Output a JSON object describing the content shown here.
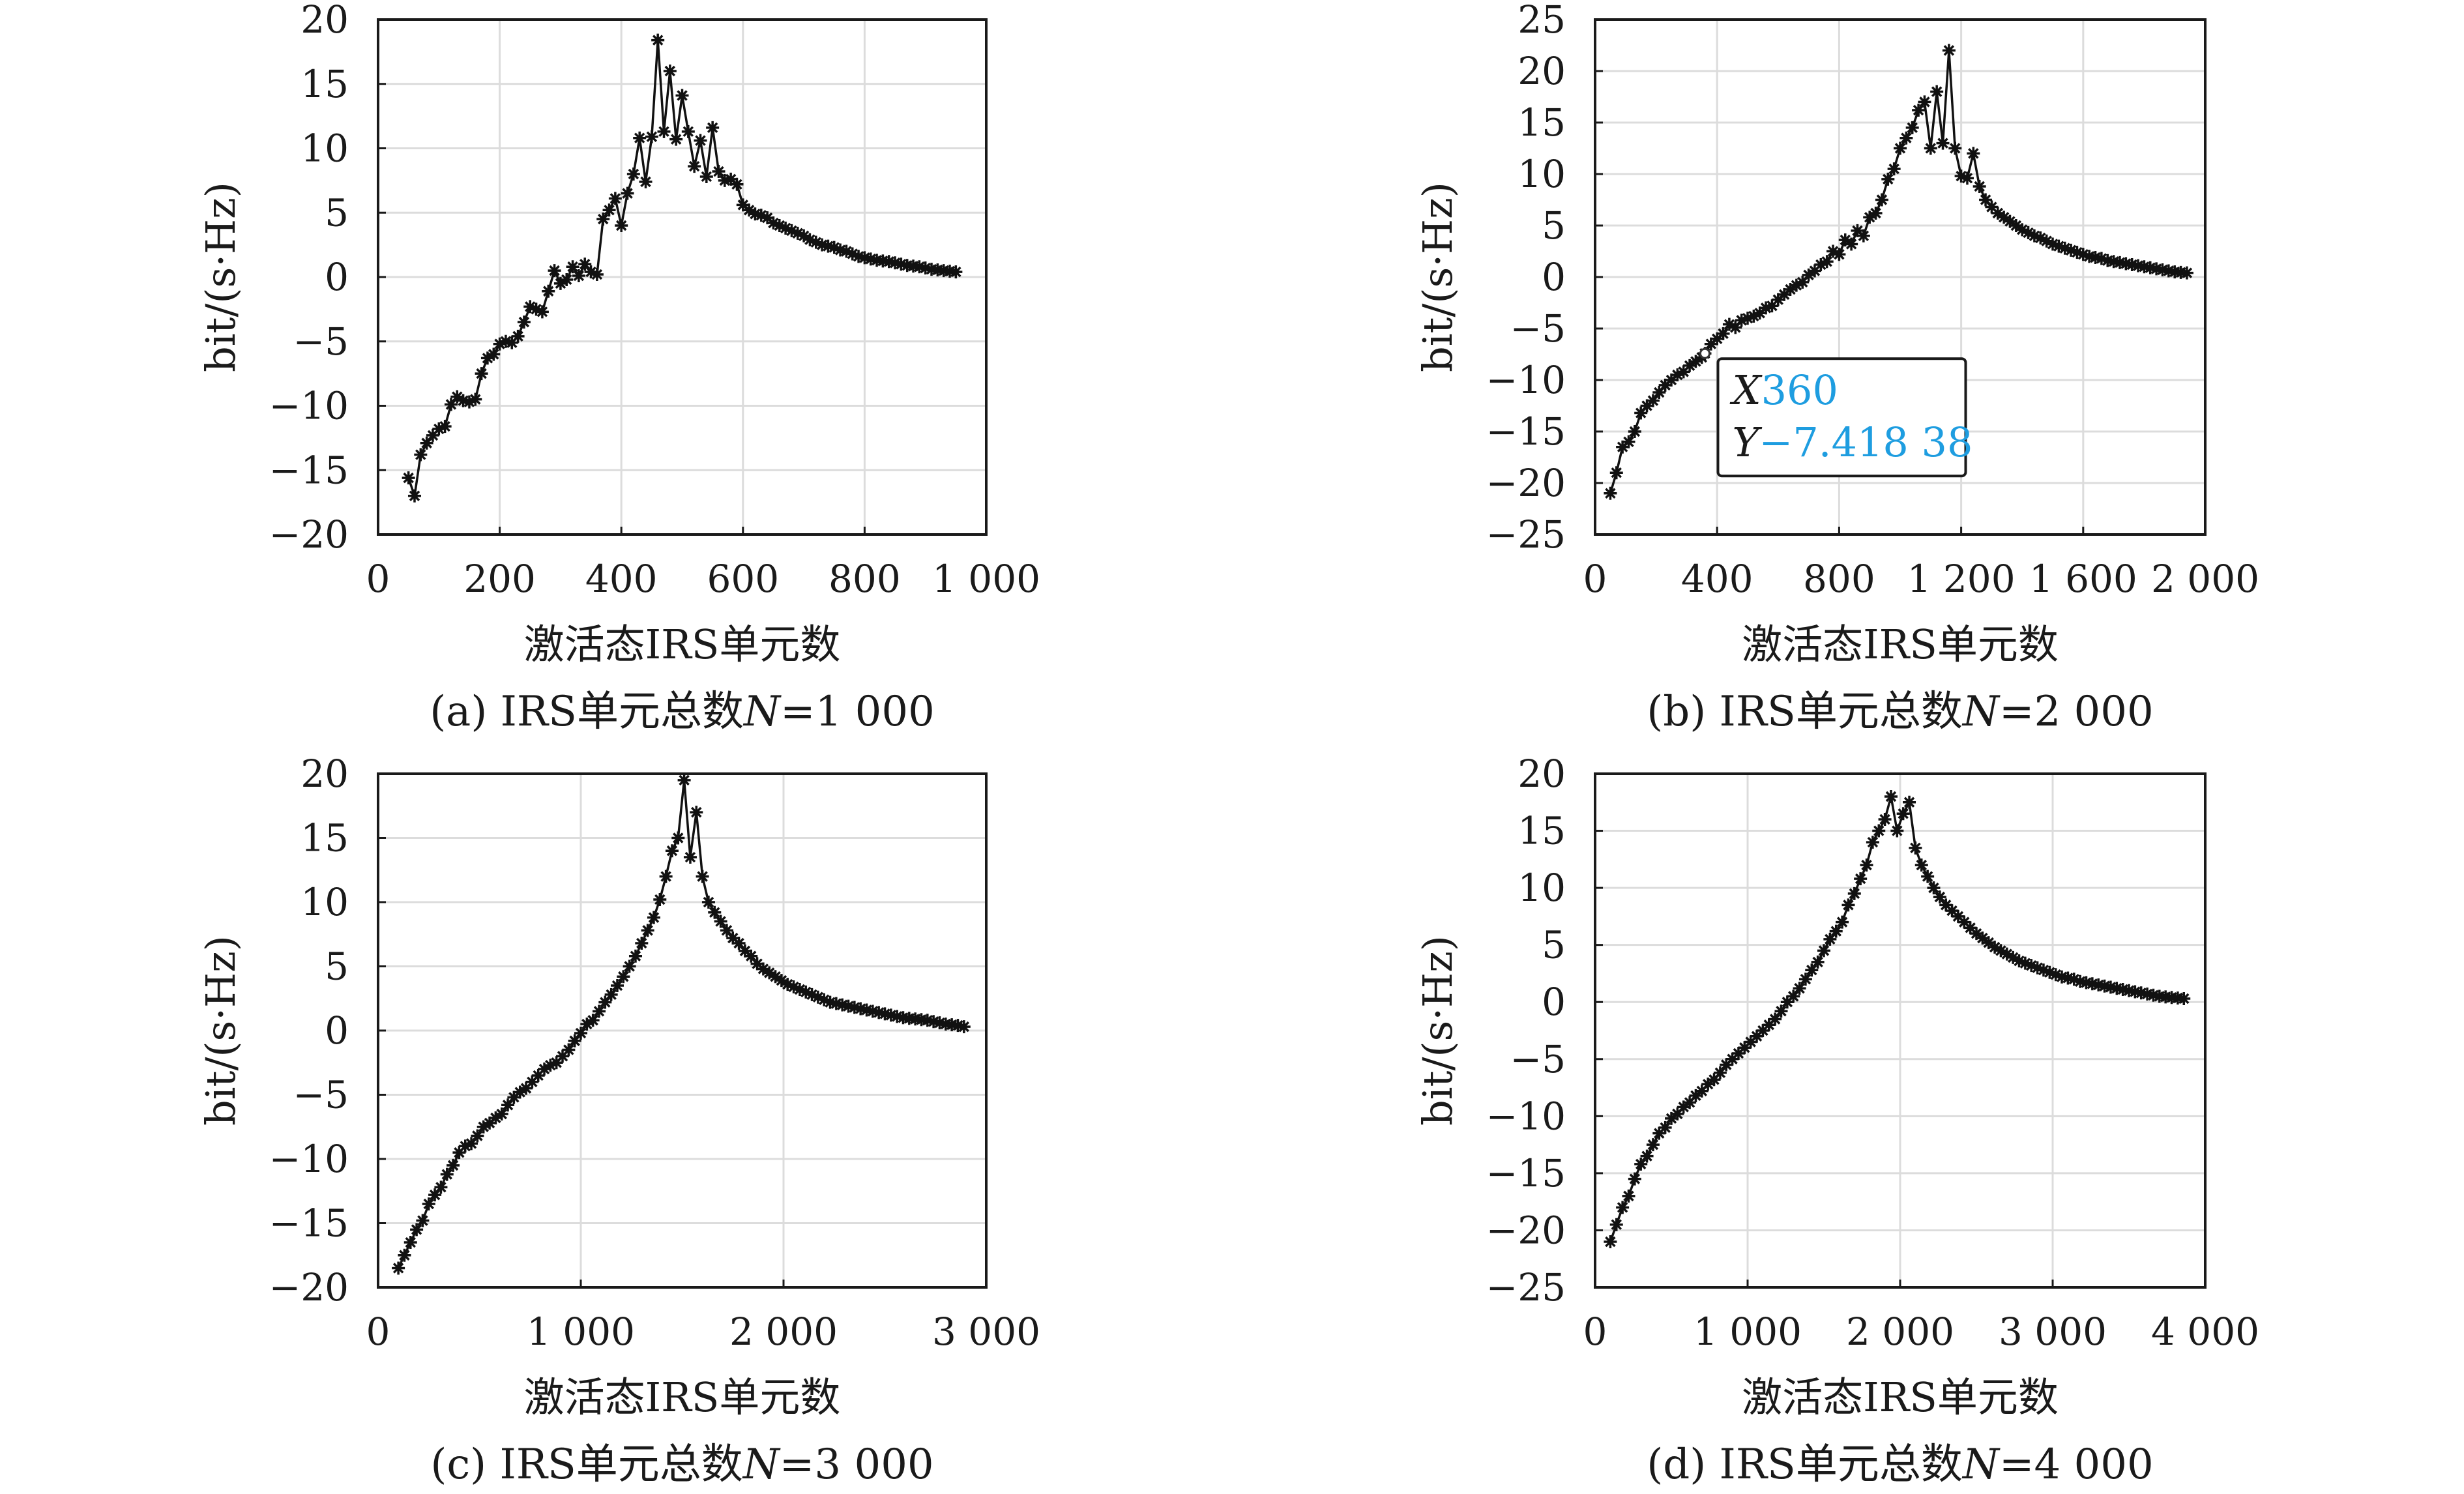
{
  "chart_data": [
    {
      "id": "a",
      "type": "line",
      "marker": "asterisk",
      "xlabel": "激活态IRS单元数",
      "ylabel": "bit/(s·Hz)",
      "caption": "(a) IRS单元总数N=1 000",
      "caption_parts": [
        "(a) IRS单元总数",
        "N",
        "=1 000"
      ],
      "xlim": [
        0,
        1000
      ],
      "ylim": [
        -20,
        20
      ],
      "xticks": [
        0,
        200,
        400,
        600,
        800,
        1000
      ],
      "xtick_labels": [
        "0",
        "200",
        "400",
        "600",
        "800",
        "1 000"
      ],
      "yticks": [
        20,
        15,
        10,
        5,
        0,
        -5,
        -10,
        -15,
        -20
      ],
      "ytick_labels": [
        "20",
        "15",
        "10",
        "5",
        "0",
        "−5",
        "−10",
        "−15",
        "−20"
      ],
      "grid": true,
      "x": [
        50,
        60,
        70,
        80,
        90,
        100,
        110,
        120,
        130,
        140,
        150,
        160,
        170,
        180,
        190,
        200,
        210,
        220,
        230,
        240,
        250,
        260,
        270,
        280,
        290,
        300,
        310,
        320,
        330,
        340,
        350,
        360,
        370,
        380,
        390,
        400,
        410,
        420,
        430,
        440,
        450,
        460,
        470,
        480,
        490,
        500,
        510,
        520,
        530,
        540,
        550,
        560,
        570,
        580,
        590,
        600,
        610,
        620,
        630,
        640,
        650,
        660,
        670,
        680,
        690,
        700,
        710,
        720,
        730,
        740,
        750,
        760,
        770,
        780,
        790,
        800,
        810,
        820,
        830,
        840,
        850,
        860,
        870,
        880,
        890,
        900,
        910,
        920,
        930,
        940,
        950
      ],
      "y": [
        -15.6,
        -17.0,
        -13.8,
        -12.9,
        -12.3,
        -11.8,
        -11.6,
        -9.9,
        -9.3,
        -9.6,
        -9.7,
        -9.5,
        -7.5,
        -6.3,
        -6.0,
        -5.2,
        -5.0,
        -5.1,
        -4.6,
        -3.5,
        -2.3,
        -2.5,
        -2.7,
        -1.1,
        0.5,
        -0.5,
        -0.2,
        0.8,
        0.1,
        1.0,
        0.4,
        0.2,
        4.5,
        5.2,
        6.1,
        4.0,
        6.5,
        8.0,
        10.8,
        7.4,
        10.9,
        18.4,
        11.3,
        16.0,
        10.7,
        14.1,
        11.3,
        8.6,
        10.6,
        7.8,
        11.6,
        8.2,
        7.5,
        7.6,
        7.2,
        5.6,
        5.2,
        4.9,
        4.8,
        4.6,
        4.2,
        4.0,
        3.8,
        3.6,
        3.4,
        3.2,
        2.9,
        2.7,
        2.5,
        2.4,
        2.3,
        2.1,
        2.0,
        1.8,
        1.6,
        1.5,
        1.4,
        1.3,
        1.25,
        1.2,
        1.1,
        1.0,
        0.9,
        0.85,
        0.8,
        0.7,
        0.6,
        0.55,
        0.5,
        0.45,
        0.4
      ]
    },
    {
      "id": "b",
      "type": "line",
      "marker": "asterisk",
      "xlabel": "激活态IRS单元数",
      "ylabel": "bit/(s·Hz)",
      "caption": "(b) IRS单元总数N=2 000",
      "caption_parts": [
        "(b) IRS单元总数",
        "N",
        "=2 000"
      ],
      "xlim": [
        0,
        2000
      ],
      "ylim": [
        -25,
        25
      ],
      "xticks": [
        0,
        400,
        800,
        1200,
        1600,
        2000
      ],
      "xtick_labels": [
        "0",
        "400",
        "800",
        "1 200",
        "1 600",
        "2 000"
      ],
      "yticks": [
        25,
        20,
        15,
        10,
        5,
        0,
        -5,
        -10,
        -15,
        -20,
        -25
      ],
      "ytick_labels": [
        "25",
        "20",
        "15",
        "10",
        "5",
        "0",
        "−5",
        "−10",
        "−15",
        "−20",
        "−25"
      ],
      "grid": true,
      "datatip": {
        "x_key": "X",
        "x_value": "360",
        "y_key": "Y",
        "y_value": "−7.418 38",
        "x": 360,
        "y": -7.41838
      },
      "x": [
        50,
        70,
        90,
        110,
        130,
        150,
        170,
        190,
        210,
        230,
        250,
        270,
        290,
        310,
        330,
        350,
        360,
        380,
        400,
        420,
        440,
        460,
        480,
        500,
        520,
        540,
        560,
        580,
        600,
        620,
        640,
        660,
        680,
        700,
        720,
        740,
        760,
        780,
        800,
        820,
        840,
        860,
        880,
        900,
        920,
        940,
        960,
        980,
        1000,
        1020,
        1040,
        1060,
        1080,
        1100,
        1120,
        1140,
        1160,
        1180,
        1200,
        1220,
        1240,
        1260,
        1280,
        1300,
        1320,
        1340,
        1360,
        1380,
        1400,
        1420,
        1440,
        1460,
        1480,
        1500,
        1520,
        1540,
        1560,
        1580,
        1600,
        1620,
        1640,
        1660,
        1680,
        1700,
        1720,
        1740,
        1760,
        1780,
        1800,
        1820,
        1840,
        1860,
        1880,
        1900,
        1920,
        1940
      ],
      "y": [
        -21.0,
        -19.0,
        -16.5,
        -16.0,
        -15.0,
        -13.2,
        -12.5,
        -12.0,
        -11.2,
        -10.5,
        -10.0,
        -9.5,
        -9.2,
        -8.6,
        -8.2,
        -7.8,
        -7.418,
        -6.5,
        -6.0,
        -5.5,
        -4.6,
        -4.9,
        -4.2,
        -4.0,
        -3.8,
        -3.5,
        -3.0,
        -2.8,
        -2.2,
        -1.7,
        -1.2,
        -0.8,
        -0.5,
        0.2,
        0.6,
        1.2,
        1.5,
        2.5,
        2.2,
        3.6,
        3.2,
        4.5,
        4.0,
        5.8,
        6.2,
        7.5,
        9.5,
        10.5,
        12.5,
        13.5,
        14.5,
        16.2,
        17.0,
        12.5,
        18.0,
        13.0,
        22.0,
        12.5,
        9.8,
        9.6,
        12.0,
        8.8,
        7.5,
        6.8,
        6.2,
        5.8,
        5.4,
        5.0,
        4.6,
        4.3,
        4.0,
        3.8,
        3.5,
        3.2,
        3.0,
        2.8,
        2.6,
        2.4,
        2.2,
        2.0,
        1.9,
        1.8,
        1.6,
        1.5,
        1.4,
        1.3,
        1.2,
        1.1,
        1.0,
        0.9,
        0.8,
        0.7,
        0.6,
        0.5,
        0.45,
        0.4
      ]
    },
    {
      "id": "c",
      "type": "line",
      "marker": "asterisk",
      "xlabel": "激活态IRS单元数",
      "ylabel": "bit/(s·Hz)",
      "caption": "(c) IRS单元总数N=3 000",
      "caption_parts": [
        "(c) IRS单元总数",
        "N",
        "=3 000"
      ],
      "xlim": [
        0,
        3000
      ],
      "ylim": [
        -20,
        20
      ],
      "xticks": [
        0,
        1000,
        2000,
        3000
      ],
      "xtick_labels": [
        "0",
        "1 000",
        "2 000",
        "3 000"
      ],
      "yticks": [
        20,
        15,
        10,
        5,
        0,
        -5,
        -10,
        -15,
        -20
      ],
      "ytick_labels": [
        "20",
        "15",
        "10",
        "5",
        "0",
        "−5",
        "−10",
        "−15",
        "−20"
      ],
      "grid": true,
      "x": [
        100,
        130,
        160,
        190,
        220,
        250,
        280,
        310,
        340,
        370,
        400,
        430,
        460,
        490,
        520,
        550,
        580,
        610,
        640,
        670,
        700,
        730,
        760,
        790,
        820,
        850,
        880,
        910,
        940,
        970,
        1000,
        1030,
        1060,
        1090,
        1120,
        1150,
        1180,
        1210,
        1240,
        1270,
        1300,
        1330,
        1360,
        1390,
        1420,
        1450,
        1480,
        1510,
        1540,
        1570,
        1600,
        1630,
        1660,
        1690,
        1720,
        1750,
        1780,
        1810,
        1840,
        1870,
        1900,
        1930,
        1960,
        1990,
        2020,
        2050,
        2080,
        2110,
        2140,
        2170,
        2200,
        2230,
        2260,
        2290,
        2320,
        2350,
        2380,
        2410,
        2440,
        2470,
        2500,
        2530,
        2560,
        2590,
        2620,
        2650,
        2680,
        2710,
        2740,
        2770,
        2800,
        2830,
        2860,
        2890
      ],
      "y": [
        -18.5,
        -17.5,
        -16.5,
        -15.5,
        -14.8,
        -13.5,
        -12.8,
        -12.2,
        -11.2,
        -10.5,
        -9.5,
        -9.0,
        -8.8,
        -8.2,
        -7.5,
        -7.2,
        -6.8,
        -6.5,
        -5.8,
        -5.2,
        -4.8,
        -4.5,
        -4.0,
        -3.5,
        -3.0,
        -2.7,
        -2.5,
        -2.0,
        -1.5,
        -0.8,
        -0.2,
        0.5,
        0.8,
        1.5,
        2.2,
        2.8,
        3.5,
        4.2,
        5.0,
        5.8,
        6.8,
        7.8,
        8.8,
        10.2,
        12.0,
        14.0,
        15.0,
        19.5,
        13.5,
        17.0,
        12.0,
        10.0,
        9.2,
        8.5,
        7.8,
        7.2,
        6.8,
        6.2,
        5.8,
        5.2,
        4.8,
        4.5,
        4.2,
        3.9,
        3.6,
        3.4,
        3.2,
        3.0,
        2.8,
        2.6,
        2.4,
        2.2,
        2.1,
        2.0,
        1.9,
        1.8,
        1.7,
        1.6,
        1.5,
        1.4,
        1.3,
        1.2,
        1.1,
        1.0,
        0.95,
        0.9,
        0.85,
        0.8,
        0.7,
        0.6,
        0.5,
        0.45,
        0.4,
        0.3
      ]
    },
    {
      "id": "d",
      "type": "line",
      "marker": "asterisk",
      "xlabel": "激活态IRS单元数",
      "ylabel": "bit/(s·Hz)",
      "caption": "(d) IRS单元总数N=4 000",
      "caption_parts": [
        "(d) IRS单元总数",
        "N",
        "=4 000"
      ],
      "xlim": [
        0,
        4000
      ],
      "ylim": [
        -25,
        20
      ],
      "xticks": [
        0,
        1000,
        2000,
        3000,
        4000
      ],
      "xtick_labels": [
        "0",
        "1 000",
        "2 000",
        "3 000",
        "4 000"
      ],
      "yticks": [
        20,
        15,
        10,
        5,
        0,
        -5,
        -10,
        -15,
        -20,
        -25
      ],
      "ytick_labels": [
        "20",
        "15",
        "10",
        "5",
        "0",
        "−5",
        "−10",
        "−15",
        "−20",
        "−25"
      ],
      "grid": true,
      "x": [
        100,
        140,
        180,
        220,
        260,
        300,
        340,
        380,
        420,
        460,
        500,
        540,
        580,
        620,
        660,
        700,
        740,
        780,
        820,
        860,
        900,
        940,
        980,
        1020,
        1060,
        1100,
        1140,
        1180,
        1220,
        1260,
        1300,
        1340,
        1380,
        1420,
        1460,
        1500,
        1540,
        1580,
        1620,
        1660,
        1700,
        1740,
        1780,
        1820,
        1860,
        1900,
        1940,
        1980,
        2020,
        2060,
        2100,
        2140,
        2180,
        2220,
        2260,
        2300,
        2340,
        2380,
        2420,
        2460,
        2500,
        2540,
        2580,
        2620,
        2660,
        2700,
        2740,
        2780,
        2820,
        2860,
        2900,
        2940,
        2980,
        3020,
        3060,
        3100,
        3140,
        3180,
        3220,
        3260,
        3300,
        3340,
        3380,
        3420,
        3460,
        3500,
        3540,
        3580,
        3620,
        3660,
        3700,
        3740,
        3780,
        3820,
        3860
      ],
      "y": [
        -21.0,
        -19.5,
        -18.0,
        -17.0,
        -15.5,
        -14.2,
        -13.5,
        -12.5,
        -11.5,
        -11.0,
        -10.2,
        -9.8,
        -9.2,
        -8.8,
        -8.2,
        -7.8,
        -7.2,
        -6.8,
        -6.2,
        -5.5,
        -5.0,
        -4.5,
        -4.0,
        -3.5,
        -3.0,
        -2.5,
        -2.0,
        -1.5,
        -0.8,
        0.0,
        0.5,
        1.2,
        2.0,
        2.8,
        3.5,
        4.5,
        5.5,
        6.2,
        7.0,
        8.5,
        9.5,
        10.8,
        12.0,
        14.0,
        15.0,
        16.0,
        18.0,
        15.0,
        16.5,
        17.5,
        13.5,
        12.0,
        11.0,
        10.0,
        9.2,
        8.5,
        8.0,
        7.5,
        7.0,
        6.5,
        6.0,
        5.6,
        5.2,
        4.8,
        4.5,
        4.2,
        3.9,
        3.6,
        3.4,
        3.2,
        3.0,
        2.8,
        2.6,
        2.4,
        2.2,
        2.1,
        2.0,
        1.8,
        1.7,
        1.6,
        1.5,
        1.4,
        1.3,
        1.2,
        1.1,
        1.0,
        0.9,
        0.8,
        0.7,
        0.6,
        0.5,
        0.45,
        0.4,
        0.35,
        0.3
      ]
    }
  ]
}
